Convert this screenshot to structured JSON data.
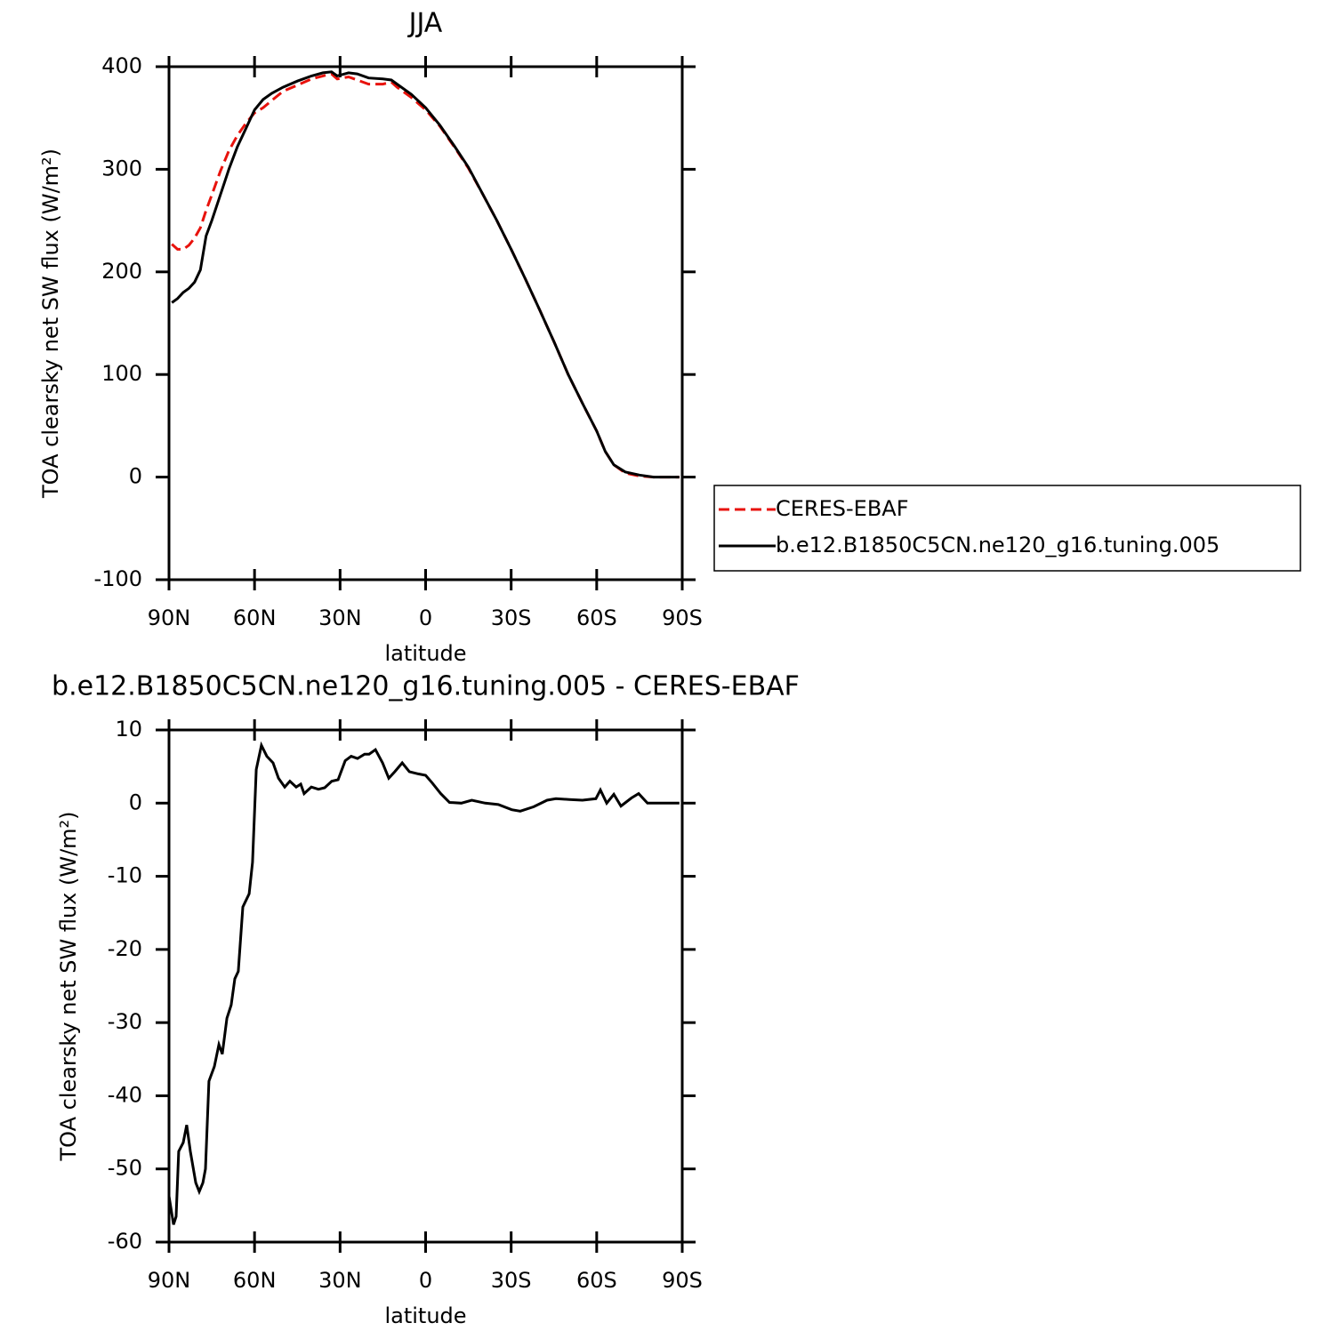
{
  "chart_data": [
    {
      "type": "line",
      "title": "JJA",
      "x_label": "latitude",
      "y_label": "TOA clearsky net SW flux (W/m²)",
      "x": [
        89,
        87,
        85,
        83,
        81,
        79,
        77,
        75,
        72,
        69,
        66,
        63,
        60,
        57,
        54,
        50,
        45,
        40,
        36,
        33,
        31,
        27,
        24,
        20,
        15,
        12,
        10,
        5,
        0,
        -5,
        -10,
        -15,
        -20,
        -25,
        -30,
        -35,
        -40,
        -45,
        -50,
        -55,
        -60,
        -63,
        -66,
        -70,
        -75,
        -80,
        -85,
        -89
      ],
      "series": [
        {
          "name": "CERES-EBAF",
          "color": "#e8120c",
          "linestyle": "dashed",
          "values": [
            227,
            222,
            222,
            226,
            233,
            243,
            260,
            275,
            298,
            318,
            333,
            345,
            355,
            360,
            367,
            376,
            382,
            388,
            391,
            393,
            388,
            390,
            387,
            383,
            383,
            385,
            380,
            370,
            358,
            342,
            322,
            301,
            276,
            250,
            222,
            193,
            163,
            132,
            100,
            72,
            45,
            25,
            12,
            4,
            1,
            0,
            0,
            0
          ]
        },
        {
          "name": "b.e12.B1850C5CN.ne120_g16.tuning.005",
          "color": "#000000",
          "linestyle": "solid",
          "values": [
            170,
            174,
            180,
            184,
            190,
            202,
            235,
            250,
            275,
            300,
            322,
            340,
            358,
            368,
            374,
            380,
            386,
            391,
            394,
            395,
            391,
            394,
            393,
            389,
            388,
            387,
            383,
            373,
            360,
            343,
            323,
            302,
            276,
            250,
            222,
            193,
            163,
            132,
            100,
            72,
            45,
            25,
            12,
            5,
            2,
            0,
            0,
            0
          ]
        }
      ],
      "xlim": [
        90,
        -90
      ],
      "xticks": [
        {
          "value": 90,
          "label": "90N"
        },
        {
          "value": 60,
          "label": "60N"
        },
        {
          "value": 30,
          "label": "30N"
        },
        0,
        {
          "value": -30,
          "label": "30S"
        },
        {
          "value": -60,
          "label": "60S"
        },
        {
          "value": -90,
          "label": "90S"
        }
      ],
      "ylim": [
        -100,
        400
      ],
      "yticks": [
        -100,
        0,
        100,
        200,
        300,
        400
      ],
      "legend": "right"
    },
    {
      "type": "line",
      "title": "b.e12.B1850C5CN.ne120_g16.tuning.005 - CERES-EBAF",
      "x_label": "latitude",
      "y_label": "TOA clearsky net SW flux (W/m²)",
      "x": [
        90,
        88.4,
        87.5,
        86.6,
        85,
        83.8,
        82.5,
        80.6,
        79.4,
        78.1,
        77.2,
        76,
        74.1,
        72.5,
        71.3,
        69.7,
        68.2,
        66.9,
        65.7,
        64.1,
        61.9,
        60.7,
        59.4,
        57.6,
        55.7,
        53.5,
        51.6,
        49.4,
        47.6,
        45.4,
        43.8,
        42.6,
        40.1,
        37.6,
        35.4,
        32.9,
        30.7,
        28.2,
        26.1,
        23.9,
        21.4,
        19.8,
        17.6,
        15.1,
        12.9,
        10.8,
        8.2,
        5.7,
        2.6,
        0,
        -2.2,
        -5.3,
        -8.4,
        -12.5,
        -16.2,
        -20.9,
        -25.5,
        -30.2,
        -33.2,
        -37.9,
        -42.6,
        -45.7,
        -50.4,
        -55,
        -59.7,
        -61.3,
        -63.5,
        -66,
        -68.5,
        -72.2,
        -74.7,
        -77.8,
        -83.1,
        -89
      ],
      "values": [
        -53.7,
        -57.6,
        -56.5,
        -47.6,
        -46.4,
        -44,
        -47.6,
        -51.9,
        -53.1,
        -51.9,
        -50,
        -38,
        -36,
        -33,
        -34.3,
        -29.4,
        -27.6,
        -24,
        -23,
        -14.2,
        -12.4,
        -8.1,
        4.6,
        7.9,
        6.4,
        5.5,
        3.4,
        2.2,
        3,
        2.2,
        2.6,
        1.3,
        2.2,
        1.9,
        2.1,
        3,
        3.2,
        5.8,
        6.4,
        6.1,
        6.7,
        6.7,
        7.3,
        5.5,
        3.4,
        4.3,
        5.5,
        4.3,
        4,
        3.8,
        2.8,
        1.3,
        0.1,
        0,
        0.4,
        0,
        -0.2,
        -0.9,
        -1.1,
        -0.5,
        0.4,
        0.6,
        0.5,
        0.4,
        0.6,
        1.8,
        0,
        1.2,
        -0.4,
        0.7,
        1.3,
        0,
        0,
        0
      ],
      "color": "#000000",
      "xlim": [
        90,
        -90
      ],
      "xticks": [
        {
          "value": 90,
          "label": "90N"
        },
        {
          "value": 60,
          "label": "60N"
        },
        {
          "value": 30,
          "label": "30N"
        },
        0,
        {
          "value": -30,
          "label": "30S"
        },
        {
          "value": -60,
          "label": "60S"
        },
        {
          "value": -90,
          "label": "90S"
        }
      ],
      "ylim": [
        -60,
        10
      ],
      "yticks": [
        -60,
        -50,
        -40,
        -30,
        -20,
        -10,
        0,
        10
      ]
    }
  ]
}
